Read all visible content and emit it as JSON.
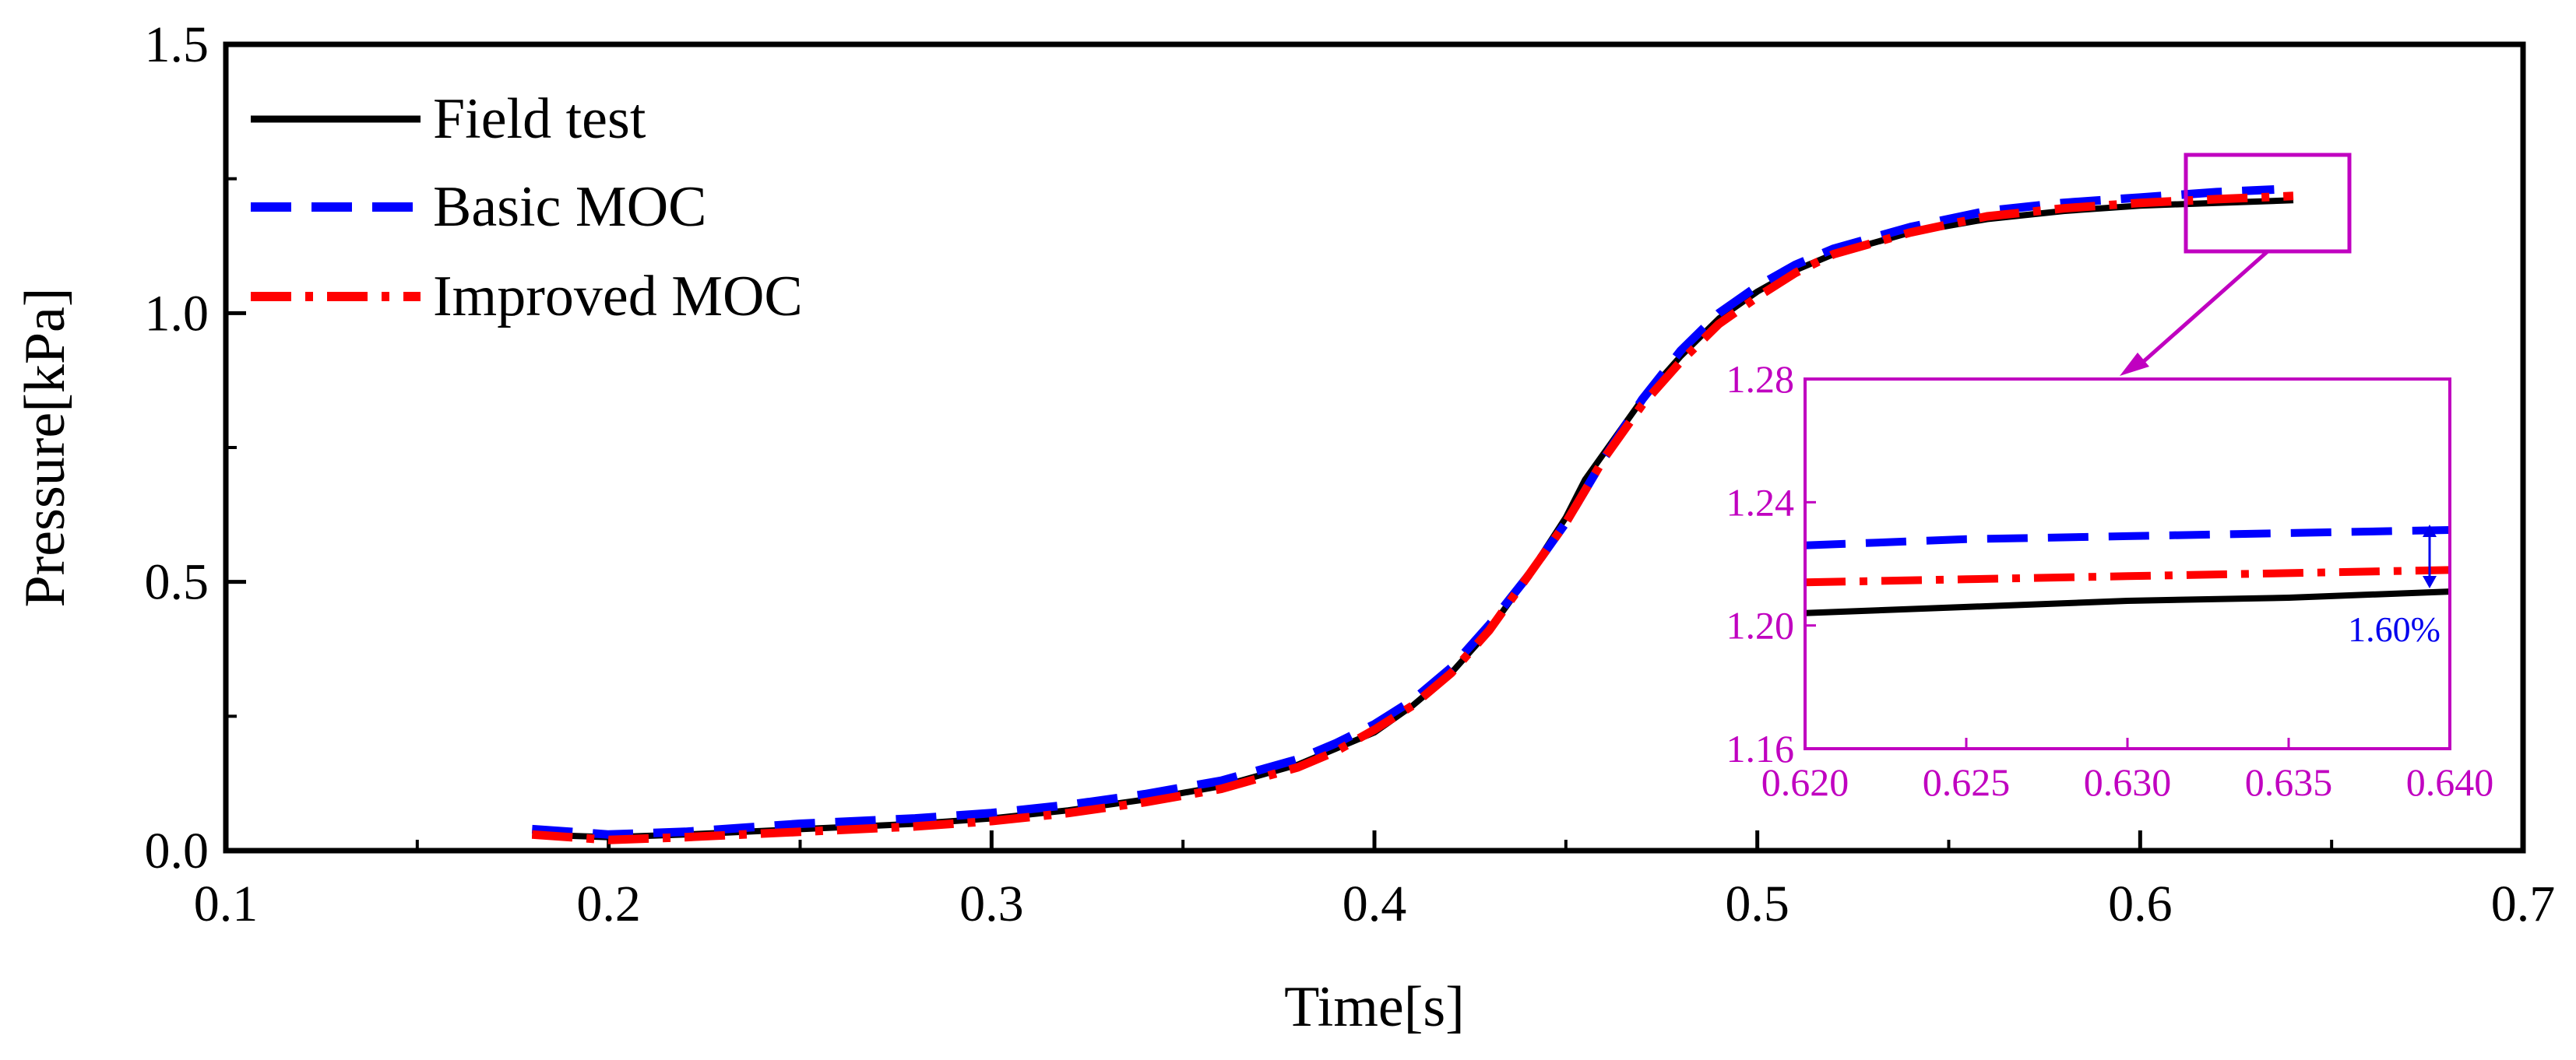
{
  "chart_data": {
    "type": "line",
    "title": "",
    "xlabel": "Time[s]",
    "ylabel": "Pressure[kPa]",
    "xlim": [
      0.1,
      0.7
    ],
    "ylim": [
      0.0,
      1.5
    ],
    "xticks": [
      "0.1",
      "0.2",
      "0.3",
      "0.4",
      "0.5",
      "0.6",
      "0.7"
    ],
    "yticks": [
      "0.0",
      "0.5",
      "1.0",
      "1.5"
    ],
    "grid": false,
    "legend_position": "top-left",
    "series": [
      {
        "name": "Field test",
        "color": "#000000",
        "style": "solid",
        "x": [
          0.18,
          0.2,
          0.22,
          0.25,
          0.28,
          0.3,
          0.32,
          0.34,
          0.36,
          0.38,
          0.39,
          0.4,
          0.41,
          0.42,
          0.43,
          0.44,
          0.45,
          0.455,
          0.46,
          0.47,
          0.48,
          0.49,
          0.5,
          0.51,
          0.52,
          0.54,
          0.56,
          0.58,
          0.6,
          0.62,
          0.64
        ],
        "y": [
          0.03,
          0.025,
          0.03,
          0.04,
          0.05,
          0.06,
          0.075,
          0.095,
          0.12,
          0.16,
          0.19,
          0.22,
          0.27,
          0.33,
          0.41,
          0.51,
          0.62,
          0.69,
          0.74,
          0.84,
          0.92,
          0.99,
          1.04,
          1.08,
          1.11,
          1.15,
          1.175,
          1.19,
          1.2,
          1.205,
          1.21
        ]
      },
      {
        "name": "Basic MOC",
        "color": "#0000ff",
        "style": "dash",
        "x": [
          0.18,
          0.2,
          0.22,
          0.25,
          0.28,
          0.3,
          0.32,
          0.34,
          0.36,
          0.38,
          0.39,
          0.4,
          0.41,
          0.42,
          0.43,
          0.44,
          0.45,
          0.455,
          0.46,
          0.47,
          0.48,
          0.49,
          0.5,
          0.51,
          0.52,
          0.54,
          0.56,
          0.58,
          0.6,
          0.62,
          0.635
        ],
        "y": [
          0.04,
          0.03,
          0.035,
          0.05,
          0.06,
          0.07,
          0.085,
          0.105,
          0.13,
          0.17,
          0.2,
          0.235,
          0.28,
          0.34,
          0.42,
          0.51,
          0.61,
          0.67,
          0.73,
          0.84,
          0.93,
          1.0,
          1.05,
          1.09,
          1.12,
          1.16,
          1.19,
          1.205,
          1.215,
          1.225,
          1.23
        ]
      },
      {
        "name": "Improved MOC",
        "color": "#ff0000",
        "style": "dashdot",
        "x": [
          0.18,
          0.2,
          0.22,
          0.25,
          0.28,
          0.3,
          0.32,
          0.34,
          0.36,
          0.38,
          0.39,
          0.4,
          0.41,
          0.42,
          0.43,
          0.44,
          0.45,
          0.455,
          0.46,
          0.47,
          0.48,
          0.49,
          0.5,
          0.51,
          0.52,
          0.54,
          0.56,
          0.58,
          0.6,
          0.62,
          0.64
        ],
        "y": [
          0.03,
          0.02,
          0.025,
          0.035,
          0.045,
          0.055,
          0.07,
          0.09,
          0.115,
          0.155,
          0.185,
          0.225,
          0.27,
          0.33,
          0.41,
          0.51,
          0.61,
          0.67,
          0.73,
          0.83,
          0.91,
          0.98,
          1.03,
          1.075,
          1.11,
          1.15,
          1.18,
          1.195,
          1.205,
          1.212,
          1.218
        ]
      }
    ],
    "inset": {
      "xlim": [
        0.62,
        0.64
      ],
      "ylim": [
        1.16,
        1.28
      ],
      "xticks": [
        "0.620",
        "0.625",
        "0.630",
        "0.635",
        "0.640"
      ],
      "yticks": [
        "1.16",
        "1.20",
        "1.24",
        "1.28"
      ],
      "frame_color": "#c000c0",
      "annotation": "1.60%",
      "series": [
        {
          "name": "Field test",
          "x": [
            0.62,
            0.625,
            0.63,
            0.635,
            0.64
          ],
          "y": [
            1.204,
            1.206,
            1.208,
            1.209,
            1.211
          ]
        },
        {
          "name": "Basic MOC",
          "x": [
            0.62,
            0.625,
            0.63,
            0.635,
            0.64
          ],
          "y": [
            1.226,
            1.228,
            1.229,
            1.23,
            1.231
          ]
        },
        {
          "name": "Improved MOC",
          "x": [
            0.62,
            0.625,
            0.63,
            0.635,
            0.64
          ],
          "y": [
            1.214,
            1.215,
            1.216,
            1.217,
            1.218
          ]
        }
      ]
    }
  }
}
